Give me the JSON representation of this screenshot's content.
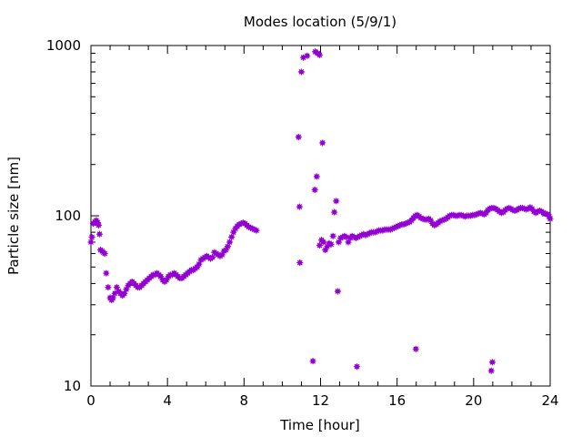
{
  "chart_data": {
    "type": "scatter",
    "title": "Modes location (5/9/1)",
    "xlabel": "Time [hour]",
    "ylabel": "Particle size [nm]",
    "xlim": [
      0,
      24
    ],
    "ylim": [
      10,
      1000
    ],
    "yscale": "log",
    "x_ticks": [
      0,
      4,
      8,
      12,
      16,
      20,
      24
    ],
    "x_tick_labels": [
      "0",
      "4",
      "8",
      "12",
      "16",
      "20",
      "24"
    ],
    "y_ticks": [
      10,
      100,
      1000
    ],
    "y_tick_labels": [
      "10",
      "100",
      "1000"
    ],
    "grid": false,
    "legend": "none",
    "marker_color": "#9400d3",
    "series": [
      {
        "points": [
          [
            0.0,
            70
          ],
          [
            0.05,
            75
          ],
          [
            0.12,
            90
          ],
          [
            0.2,
            92
          ],
          [
            0.28,
            94
          ],
          [
            0.35,
            91
          ],
          [
            0.4,
            88
          ],
          [
            0.45,
            78
          ],
          [
            0.5,
            63
          ],
          [
            0.58,
            62
          ],
          [
            0.65,
            61
          ],
          [
            0.72,
            60
          ],
          [
            0.8,
            46
          ],
          [
            0.9,
            38
          ],
          [
            1.0,
            33
          ],
          [
            1.08,
            32
          ],
          [
            1.15,
            33
          ],
          [
            1.25,
            35
          ],
          [
            1.35,
            38
          ],
          [
            1.45,
            36
          ],
          [
            1.55,
            35
          ],
          [
            1.65,
            34
          ],
          [
            1.75,
            35
          ],
          [
            1.85,
            37
          ],
          [
            1.95,
            39
          ],
          [
            2.05,
            40
          ],
          [
            2.15,
            41
          ],
          [
            2.25,
            40
          ],
          [
            2.35,
            39
          ],
          [
            2.45,
            38
          ],
          [
            2.55,
            38
          ],
          [
            2.65,
            39
          ],
          [
            2.75,
            40
          ],
          [
            2.85,
            41
          ],
          [
            2.95,
            42
          ],
          [
            3.05,
            43
          ],
          [
            3.15,
            44
          ],
          [
            3.25,
            45
          ],
          [
            3.35,
            45
          ],
          [
            3.45,
            46
          ],
          [
            3.55,
            45
          ],
          [
            3.65,
            44
          ],
          [
            3.75,
            42
          ],
          [
            3.85,
            41
          ],
          [
            3.95,
            42
          ],
          [
            4.05,
            44
          ],
          [
            4.15,
            45
          ],
          [
            4.25,
            45
          ],
          [
            4.35,
            46
          ],
          [
            4.45,
            45
          ],
          [
            4.55,
            44
          ],
          [
            4.65,
            43
          ],
          [
            4.75,
            43
          ],
          [
            4.85,
            44
          ],
          [
            4.95,
            45
          ],
          [
            5.05,
            46
          ],
          [
            5.15,
            47
          ],
          [
            5.25,
            48
          ],
          [
            5.35,
            48
          ],
          [
            5.45,
            49
          ],
          [
            5.55,
            50
          ],
          [
            5.65,
            52
          ],
          [
            5.75,
            55
          ],
          [
            5.85,
            56
          ],
          [
            5.95,
            57
          ],
          [
            6.05,
            58
          ],
          [
            6.15,
            57
          ],
          [
            6.25,
            56
          ],
          [
            6.35,
            57
          ],
          [
            6.45,
            61
          ],
          [
            6.55,
            60
          ],
          [
            6.65,
            59
          ],
          [
            6.75,
            58
          ],
          [
            6.85,
            59
          ],
          [
            6.95,
            62
          ],
          [
            7.05,
            63
          ],
          [
            7.15,
            66
          ],
          [
            7.25,
            70
          ],
          [
            7.35,
            75
          ],
          [
            7.45,
            80
          ],
          [
            7.55,
            84
          ],
          [
            7.65,
            87
          ],
          [
            7.75,
            89
          ],
          [
            7.85,
            90
          ],
          [
            7.95,
            91
          ],
          [
            8.05,
            90
          ],
          [
            8.15,
            88
          ],
          [
            8.25,
            86
          ],
          [
            8.35,
            85
          ],
          [
            8.45,
            84
          ],
          [
            8.55,
            83
          ],
          [
            8.65,
            82
          ],
          [
            10.85,
            290
          ],
          [
            10.9,
            113
          ],
          [
            10.92,
            53
          ],
          [
            11.0,
            700
          ],
          [
            11.1,
            850
          ],
          [
            11.3,
            870
          ],
          [
            11.6,
            14
          ],
          [
            11.7,
            142
          ],
          [
            11.8,
            170
          ],
          [
            11.72,
            920
          ],
          [
            11.85,
            900
          ],
          [
            11.95,
            880
          ],
          [
            11.95,
            67
          ],
          [
            12.05,
            72
          ],
          [
            12.1,
            268
          ],
          [
            12.15,
            70
          ],
          [
            12.25,
            63
          ],
          [
            12.35,
            66
          ],
          [
            12.45,
            69
          ],
          [
            12.55,
            68
          ],
          [
            12.65,
            76
          ],
          [
            12.72,
            105
          ],
          [
            12.82,
            122
          ],
          [
            12.9,
            36
          ],
          [
            12.95,
            70
          ],
          [
            13.05,
            74
          ],
          [
            13.15,
            75
          ],
          [
            13.25,
            76
          ],
          [
            13.35,
            75
          ],
          [
            13.45,
            70
          ],
          [
            13.55,
            74
          ],
          [
            13.65,
            76
          ],
          [
            13.75,
            75
          ],
          [
            13.85,
            74
          ],
          [
            13.9,
            13
          ],
          [
            13.95,
            75
          ],
          [
            14.05,
            76
          ],
          [
            14.15,
            77
          ],
          [
            14.25,
            78
          ],
          [
            14.35,
            77
          ],
          [
            14.45,
            78
          ],
          [
            14.55,
            79
          ],
          [
            14.65,
            80
          ],
          [
            14.75,
            80
          ],
          [
            14.85,
            80
          ],
          [
            14.95,
            81
          ],
          [
            15.05,
            82
          ],
          [
            15.15,
            82
          ],
          [
            15.25,
            82
          ],
          [
            15.35,
            83
          ],
          [
            15.45,
            83
          ],
          [
            15.55,
            83
          ],
          [
            15.65,
            83
          ],
          [
            15.75,
            84
          ],
          [
            15.85,
            85
          ],
          [
            15.95,
            86
          ],
          [
            16.05,
            87
          ],
          [
            16.15,
            88
          ],
          [
            16.25,
            89
          ],
          [
            16.35,
            89
          ],
          [
            16.45,
            90
          ],
          [
            16.55,
            91
          ],
          [
            16.65,
            92
          ],
          [
            16.75,
            94
          ],
          [
            16.85,
            97
          ],
          [
            16.95,
            100
          ],
          [
            16.98,
            16.5
          ],
          [
            17.05,
            101
          ],
          [
            17.15,
            99
          ],
          [
            17.25,
            97
          ],
          [
            17.35,
            96
          ],
          [
            17.45,
            95
          ],
          [
            17.55,
            95
          ],
          [
            17.65,
            96
          ],
          [
            17.75,
            94
          ],
          [
            17.85,
            90
          ],
          [
            17.95,
            88
          ],
          [
            18.05,
            89
          ],
          [
            18.15,
            91
          ],
          [
            18.25,
            93
          ],
          [
            18.35,
            94
          ],
          [
            18.45,
            95
          ],
          [
            18.55,
            96
          ],
          [
            18.65,
            98
          ],
          [
            18.75,
            100
          ],
          [
            18.85,
            101
          ],
          [
            18.95,
            101
          ],
          [
            19.05,
            100
          ],
          [
            19.15,
            100
          ],
          [
            19.25,
            101
          ],
          [
            19.35,
            101
          ],
          [
            19.45,
            100
          ],
          [
            19.55,
            99
          ],
          [
            19.65,
            100
          ],
          [
            19.75,
            100
          ],
          [
            19.85,
            100
          ],
          [
            19.95,
            101
          ],
          [
            20.05,
            101
          ],
          [
            20.15,
            102
          ],
          [
            20.25,
            103
          ],
          [
            20.35,
            104
          ],
          [
            20.45,
            103
          ],
          [
            20.55,
            102
          ],
          [
            20.65,
            104
          ],
          [
            20.75,
            108
          ],
          [
            20.85,
            110
          ],
          [
            20.92,
            12.3
          ],
          [
            20.95,
            111
          ],
          [
            20.98,
            13.8
          ],
          [
            21.05,
            111
          ],
          [
            21.15,
            110
          ],
          [
            21.25,
            108
          ],
          [
            21.35,
            106
          ],
          [
            21.45,
            104
          ],
          [
            21.55,
            105
          ],
          [
            21.65,
            108
          ],
          [
            21.75,
            110
          ],
          [
            21.85,
            111
          ],
          [
            21.95,
            110
          ],
          [
            22.05,
            108
          ],
          [
            22.15,
            107
          ],
          [
            22.25,
            108
          ],
          [
            22.35,
            110
          ],
          [
            22.45,
            111
          ],
          [
            22.55,
            111
          ],
          [
            22.65,
            110
          ],
          [
            22.75,
            109
          ],
          [
            22.85,
            110
          ],
          [
            22.95,
            112
          ],
          [
            23.05,
            110
          ],
          [
            23.15,
            106
          ],
          [
            23.25,
            104
          ],
          [
            23.35,
            106
          ],
          [
            23.45,
            107
          ],
          [
            23.55,
            106
          ],
          [
            23.65,
            104
          ],
          [
            23.75,
            103
          ],
          [
            23.85,
            102
          ],
          [
            23.95,
            99
          ],
          [
            24.0,
            96
          ]
        ]
      }
    ]
  }
}
